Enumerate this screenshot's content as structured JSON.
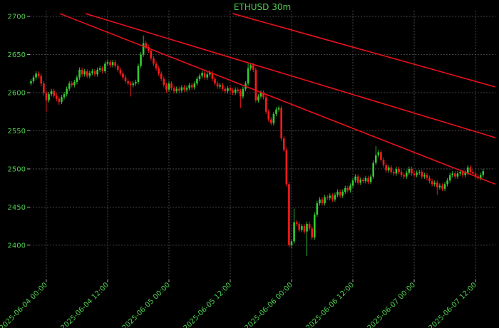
{
  "chart_data": {
    "type": "candlestick",
    "title": "ETHUSD 30m",
    "x": [
      "2025-06-03 21:00",
      "2025-06-03 21:30",
      "2025-06-03 22:00",
      "2025-06-03 22:30",
      "2025-06-03 23:00",
      "2025-06-03 23:30",
      "2025-06-04 00:00",
      "2025-06-04 00:30",
      "2025-06-04 01:00",
      "2025-06-04 01:30",
      "2025-06-04 02:00",
      "2025-06-04 02:30",
      "2025-06-04 03:00",
      "2025-06-04 03:30",
      "2025-06-04 04:00",
      "2025-06-04 04:30",
      "2025-06-04 05:00",
      "2025-06-04 05:30",
      "2025-06-04 06:00",
      "2025-06-04 06:30",
      "2025-06-04 07:00",
      "2025-06-04 07:30",
      "2025-06-04 08:00",
      "2025-06-04 08:30",
      "2025-06-04 09:00",
      "2025-06-04 09:30",
      "2025-06-04 10:00",
      "2025-06-04 10:30",
      "2025-06-04 11:00",
      "2025-06-04 11:30",
      "2025-06-04 12:00",
      "2025-06-04 12:30",
      "2025-06-04 13:00",
      "2025-06-04 13:30",
      "2025-06-04 14:00",
      "2025-06-04 14:30",
      "2025-06-04 15:00",
      "2025-06-04 15:30",
      "2025-06-04 16:00",
      "2025-06-04 16:30",
      "2025-06-04 17:00",
      "2025-06-04 17:30",
      "2025-06-04 18:00",
      "2025-06-04 18:30",
      "2025-06-04 19:00",
      "2025-06-04 19:30",
      "2025-06-04 20:00",
      "2025-06-04 20:30",
      "2025-06-04 21:00",
      "2025-06-04 21:30",
      "2025-06-04 22:00",
      "2025-06-04 22:30",
      "2025-06-04 23:00",
      "2025-06-04 23:30",
      "2025-06-05 00:00",
      "2025-06-05 00:30",
      "2025-06-05 01:00",
      "2025-06-05 01:30",
      "2025-06-05 02:00",
      "2025-06-05 02:30",
      "2025-06-05 03:00",
      "2025-06-05 03:30",
      "2025-06-05 04:00",
      "2025-06-05 04:30",
      "2025-06-05 05:00",
      "2025-06-05 05:30",
      "2025-06-05 06:00",
      "2025-06-05 06:30",
      "2025-06-05 07:00",
      "2025-06-05 07:30",
      "2025-06-05 08:00",
      "2025-06-05 08:30",
      "2025-06-05 09:00",
      "2025-06-05 09:30",
      "2025-06-05 10:00",
      "2025-06-05 10:30",
      "2025-06-05 11:00",
      "2025-06-05 11:30",
      "2025-06-05 12:00",
      "2025-06-05 12:30",
      "2025-06-05 13:00",
      "2025-06-05 13:30",
      "2025-06-05 14:00",
      "2025-06-05 14:30",
      "2025-06-05 15:00",
      "2025-06-05 15:30",
      "2025-06-05 16:00",
      "2025-06-05 16:30",
      "2025-06-05 17:00",
      "2025-06-05 17:30",
      "2025-06-05 18:00",
      "2025-06-05 18:30",
      "2025-06-05 19:00",
      "2025-06-05 19:30",
      "2025-06-05 20:00",
      "2025-06-05 20:30",
      "2025-06-05 21:00",
      "2025-06-05 21:30",
      "2025-06-05 22:00",
      "2025-06-05 22:30",
      "2025-06-05 23:00",
      "2025-06-05 23:30",
      "2025-06-06 00:00",
      "2025-06-06 00:30",
      "2025-06-06 01:00",
      "2025-06-06 01:30",
      "2025-06-06 02:00",
      "2025-06-06 02:30",
      "2025-06-06 03:00",
      "2025-06-06 03:30",
      "2025-06-06 04:00",
      "2025-06-06 04:30",
      "2025-06-06 05:00",
      "2025-06-06 05:30",
      "2025-06-06 06:00",
      "2025-06-06 06:30",
      "2025-06-06 07:00",
      "2025-06-06 07:30",
      "2025-06-06 08:00",
      "2025-06-06 08:30",
      "2025-06-06 09:00",
      "2025-06-06 09:30",
      "2025-06-06 10:00",
      "2025-06-06 10:30",
      "2025-06-06 11:00",
      "2025-06-06 11:30",
      "2025-06-06 12:00",
      "2025-06-06 12:30",
      "2025-06-06 13:00",
      "2025-06-06 13:30",
      "2025-06-06 14:00",
      "2025-06-06 14:30",
      "2025-06-06 15:00",
      "2025-06-06 15:30",
      "2025-06-06 16:00",
      "2025-06-06 16:30",
      "2025-06-06 17:00",
      "2025-06-06 17:30",
      "2025-06-06 18:00",
      "2025-06-06 18:30",
      "2025-06-06 19:00",
      "2025-06-06 19:30",
      "2025-06-06 20:00",
      "2025-06-06 20:30",
      "2025-06-06 21:00",
      "2025-06-06 21:30",
      "2025-06-06 22:00",
      "2025-06-06 22:30",
      "2025-06-06 23:00",
      "2025-06-06 23:30",
      "2025-06-07 00:00",
      "2025-06-07 00:30",
      "2025-06-07 01:00",
      "2025-06-07 01:30",
      "2025-06-07 02:00",
      "2025-06-07 02:30",
      "2025-06-07 03:00",
      "2025-06-07 03:30",
      "2025-06-07 04:00",
      "2025-06-07 04:30",
      "2025-06-07 05:00",
      "2025-06-07 05:30",
      "2025-06-07 06:00",
      "2025-06-07 06:30",
      "2025-06-07 07:00",
      "2025-06-07 07:30",
      "2025-06-07 08:00",
      "2025-06-07 08:30",
      "2025-06-07 09:00",
      "2025-06-07 09:30",
      "2025-06-07 10:00",
      "2025-06-07 10:30",
      "2025-06-07 11:00",
      "2025-06-07 11:30",
      "2025-06-07 12:00",
      "2025-06-07 12:30",
      "2025-06-07 13:00",
      "2025-06-07 13:30"
    ],
    "open": [
      2612,
      2615,
      2620,
      2625,
      2622,
      2612,
      2600,
      2590,
      2598,
      2602,
      2596,
      2592,
      2588,
      2594,
      2598,
      2605,
      2612,
      2610,
      2614,
      2620,
      2630,
      2624,
      2628,
      2622,
      2626,
      2628,
      2624,
      2630,
      2632,
      2628,
      2638,
      2640,
      2636,
      2640,
      2635,
      2630,
      2625,
      2620,
      2615,
      2612,
      2610,
      2612,
      2614,
      2635,
      2650,
      2665,
      2660,
      2655,
      2645,
      2638,
      2632,
      2625,
      2618,
      2610,
      2604,
      2612,
      2606,
      2602,
      2605,
      2603,
      2607,
      2604,
      2606,
      2610,
      2607,
      2612,
      2618,
      2622,
      2626,
      2620,
      2624,
      2626,
      2618,
      2612,
      2608,
      2610,
      2605,
      2602,
      2606,
      2603,
      2600,
      2604,
      2602,
      2595,
      2605,
      2612,
      2632,
      2636,
      2630,
      2590,
      2595,
      2600,
      2594,
      2575,
      2565,
      2560,
      2572,
      2578,
      2580,
      2540,
      2525,
      2480,
      2400,
      2405,
      2430,
      2428,
      2420,
      2425,
      2418,
      2428,
      2422,
      2410,
      2440,
      2455,
      2460,
      2455,
      2463,
      2462,
      2465,
      2460,
      2466,
      2470,
      2465,
      2470,
      2475,
      2472,
      2478,
      2485,
      2490,
      2482,
      2486,
      2484,
      2488,
      2483,
      2490,
      2508,
      2518,
      2522,
      2512,
      2505,
      2498,
      2502,
      2496,
      2494,
      2500,
      2496,
      2492,
      2490,
      2495,
      2500,
      2494,
      2492,
      2495,
      2496,
      2490,
      2492,
      2488,
      2484,
      2480,
      2482,
      2476,
      2478,
      2474,
      2480,
      2485,
      2492,
      2494,
      2490,
      2494,
      2496,
      2492,
      2495,
      2502,
      2496,
      2494,
      2490,
      2488,
      2492
    ],
    "high": [
      2618,
      2623,
      2628,
      2628,
      2625,
      2615,
      2603,
      2601,
      2605,
      2605,
      2599,
      2595,
      2597,
      2601,
      2608,
      2615,
      2615,
      2617,
      2623,
      2633,
      2633,
      2631,
      2631,
      2629,
      2631,
      2631,
      2633,
      2635,
      2635,
      2641,
      2643,
      2643,
      2643,
      2643,
      2638,
      2633,
      2628,
      2623,
      2618,
      2615,
      2615,
      2617,
      2638,
      2653,
      2675,
      2668,
      2663,
      2658,
      2648,
      2641,
      2635,
      2628,
      2621,
      2613,
      2615,
      2615,
      2609,
      2608,
      2608,
      2610,
      2610,
      2609,
      2613,
      2613,
      2615,
      2621,
      2625,
      2629,
      2629,
      2627,
      2629,
      2629,
      2621,
      2615,
      2613,
      2613,
      2608,
      2609,
      2609,
      2606,
      2607,
      2607,
      2605,
      2608,
      2615,
      2638,
      2639,
      2639,
      2633,
      2598,
      2603,
      2603,
      2597,
      2578,
      2568,
      2575,
      2581,
      2583,
      2583,
      2543,
      2528,
      2483,
      2408,
      2448,
      2433,
      2431,
      2428,
      2428,
      2431,
      2431,
      2425,
      2443,
      2458,
      2463,
      2463,
      2466,
      2466,
      2468,
      2468,
      2469,
      2473,
      2473,
      2473,
      2478,
      2478,
      2481,
      2488,
      2493,
      2493,
      2489,
      2489,
      2491,
      2491,
      2493,
      2511,
      2530,
      2525,
      2525,
      2515,
      2508,
      2505,
      2505,
      2499,
      2503,
      2503,
      2499,
      2495,
      2498,
      2503,
      2503,
      2497,
      2498,
      2499,
      2499,
      2495,
      2495,
      2491,
      2487,
      2485,
      2485,
      2481,
      2481,
      2483,
      2488,
      2495,
      2497,
      2497,
      2497,
      2499,
      2499,
      2498,
      2505,
      2505,
      2499,
      2497,
      2493,
      2495,
      2500
    ],
    "low": [
      2609,
      2612,
      2617,
      2619,
      2608,
      2596,
      2575,
      2587,
      2595,
      2593,
      2589,
      2584,
      2585,
      2591,
      2595,
      2602,
      2607,
      2607,
      2611,
      2617,
      2621,
      2621,
      2619,
      2619,
      2623,
      2621,
      2621,
      2627,
      2625,
      2625,
      2635,
      2633,
      2633,
      2632,
      2627,
      2622,
      2617,
      2612,
      2609,
      2595,
      2607,
      2609,
      2611,
      2632,
      2647,
      2657,
      2652,
      2642,
      2635,
      2629,
      2622,
      2615,
      2607,
      2600,
      2601,
      2603,
      2599,
      2599,
      2600,
      2600,
      2601,
      2601,
      2603,
      2604,
      2604,
      2609,
      2615,
      2619,
      2617,
      2617,
      2621,
      2615,
      2609,
      2605,
      2605,
      2602,
      2599,
      2599,
      2600,
      2597,
      2597,
      2599,
      2580,
      2592,
      2602,
      2609,
      2629,
      2627,
      2587,
      2587,
      2592,
      2591,
      2572,
      2562,
      2557,
      2557,
      2569,
      2575,
      2537,
      2522,
      2477,
      2397,
      2396,
      2402,
      2425,
      2417,
      2417,
      2415,
      2386,
      2419,
      2407,
      2407,
      2437,
      2452,
      2452,
      2452,
      2459,
      2459,
      2457,
      2457,
      2463,
      2462,
      2462,
      2467,
      2469,
      2469,
      2475,
      2482,
      2479,
      2479,
      2481,
      2481,
      2480,
      2480,
      2487,
      2505,
      2515,
      2509,
      2502,
      2495,
      2495,
      2493,
      2491,
      2491,
      2493,
      2489,
      2487,
      2487,
      2492,
      2491,
      2489,
      2489,
      2492,
      2487,
      2487,
      2485,
      2481,
      2477,
      2477,
      2466,
      2473,
      2471,
      2471,
      2477,
      2482,
      2489,
      2487,
      2487,
      2491,
      2489,
      2489,
      2492,
      2493,
      2491,
      2487,
      2485,
      2485,
      2489
    ],
    "close": [
      2615,
      2620,
      2625,
      2622,
      2612,
      2600,
      2590,
      2598,
      2602,
      2596,
      2592,
      2588,
      2594,
      2598,
      2605,
      2612,
      2610,
      2614,
      2620,
      2630,
      2624,
      2628,
      2622,
      2626,
      2628,
      2624,
      2630,
      2632,
      2628,
      2638,
      2640,
      2636,
      2640,
      2635,
      2630,
      2625,
      2620,
      2615,
      2612,
      2610,
      2612,
      2614,
      2635,
      2650,
      2665,
      2660,
      2655,
      2645,
      2638,
      2632,
      2625,
      2618,
      2610,
      2604,
      2612,
      2606,
      2602,
      2605,
      2603,
      2607,
      2604,
      2606,
      2610,
      2607,
      2612,
      2618,
      2622,
      2626,
      2620,
      2624,
      2626,
      2618,
      2612,
      2608,
      2610,
      2605,
      2602,
      2606,
      2603,
      2600,
      2604,
      2602,
      2595,
      2605,
      2612,
      2632,
      2636,
      2630,
      2590,
      2595,
      2600,
      2594,
      2575,
      2565,
      2560,
      2572,
      2578,
      2580,
      2540,
      2525,
      2480,
      2400,
      2405,
      2430,
      2428,
      2420,
      2425,
      2418,
      2428,
      2422,
      2410,
      2440,
      2455,
      2460,
      2455,
      2463,
      2462,
      2465,
      2460,
      2466,
      2470,
      2465,
      2470,
      2475,
      2472,
      2478,
      2485,
      2490,
      2482,
      2486,
      2484,
      2488,
      2483,
      2490,
      2508,
      2518,
      2522,
      2512,
      2505,
      2498,
      2502,
      2496,
      2494,
      2500,
      2496,
      2492,
      2490,
      2495,
      2500,
      2494,
      2492,
      2495,
      2496,
      2490,
      2492,
      2488,
      2484,
      2480,
      2482,
      2476,
      2478,
      2474,
      2480,
      2485,
      2492,
      2494,
      2490,
      2494,
      2496,
      2492,
      2495,
      2502,
      2496,
      2494,
      2490,
      2488,
      2492,
      2497
    ],
    "up_color": "#33cc33",
    "down_color": "#ff1a1a",
    "lines": [
      {
        "x": [
          "2025-06-04 02:39",
          "2025-06-07 15:54"
        ],
        "y": [
          2703.7,
          2480
        ],
        "color": "#e8101a"
      },
      {
        "x": [
          "2025-06-04 07:40",
          "2025-06-07 15:54"
        ],
        "y": [
          2703.7,
          2541
        ],
        "color": "#e8101a"
      },
      {
        "x": [
          "2025-06-05 12:30",
          "2025-06-07 15:54"
        ],
        "y": [
          2703.7,
          2607.5
        ],
        "color": "#e8101a"
      }
    ],
    "xlim": [
      "2025-06-03 20:48",
      "2025-06-07 15:54"
    ],
    "xticks": [
      "2025-06-04 00:00",
      "2025-06-04 12:00",
      "2025-06-05 00:00",
      "2025-06-05 12:00",
      "2025-06-06 00:00",
      "2025-06-06 12:00",
      "2025-06-07 00:00",
      "2025-06-07 12:00"
    ],
    "ylim": [
      2355,
      2707.5
    ],
    "yticks": [
      2400,
      2450,
      2500,
      2550,
      2600,
      2650,
      2700
    ],
    "grid": true
  }
}
